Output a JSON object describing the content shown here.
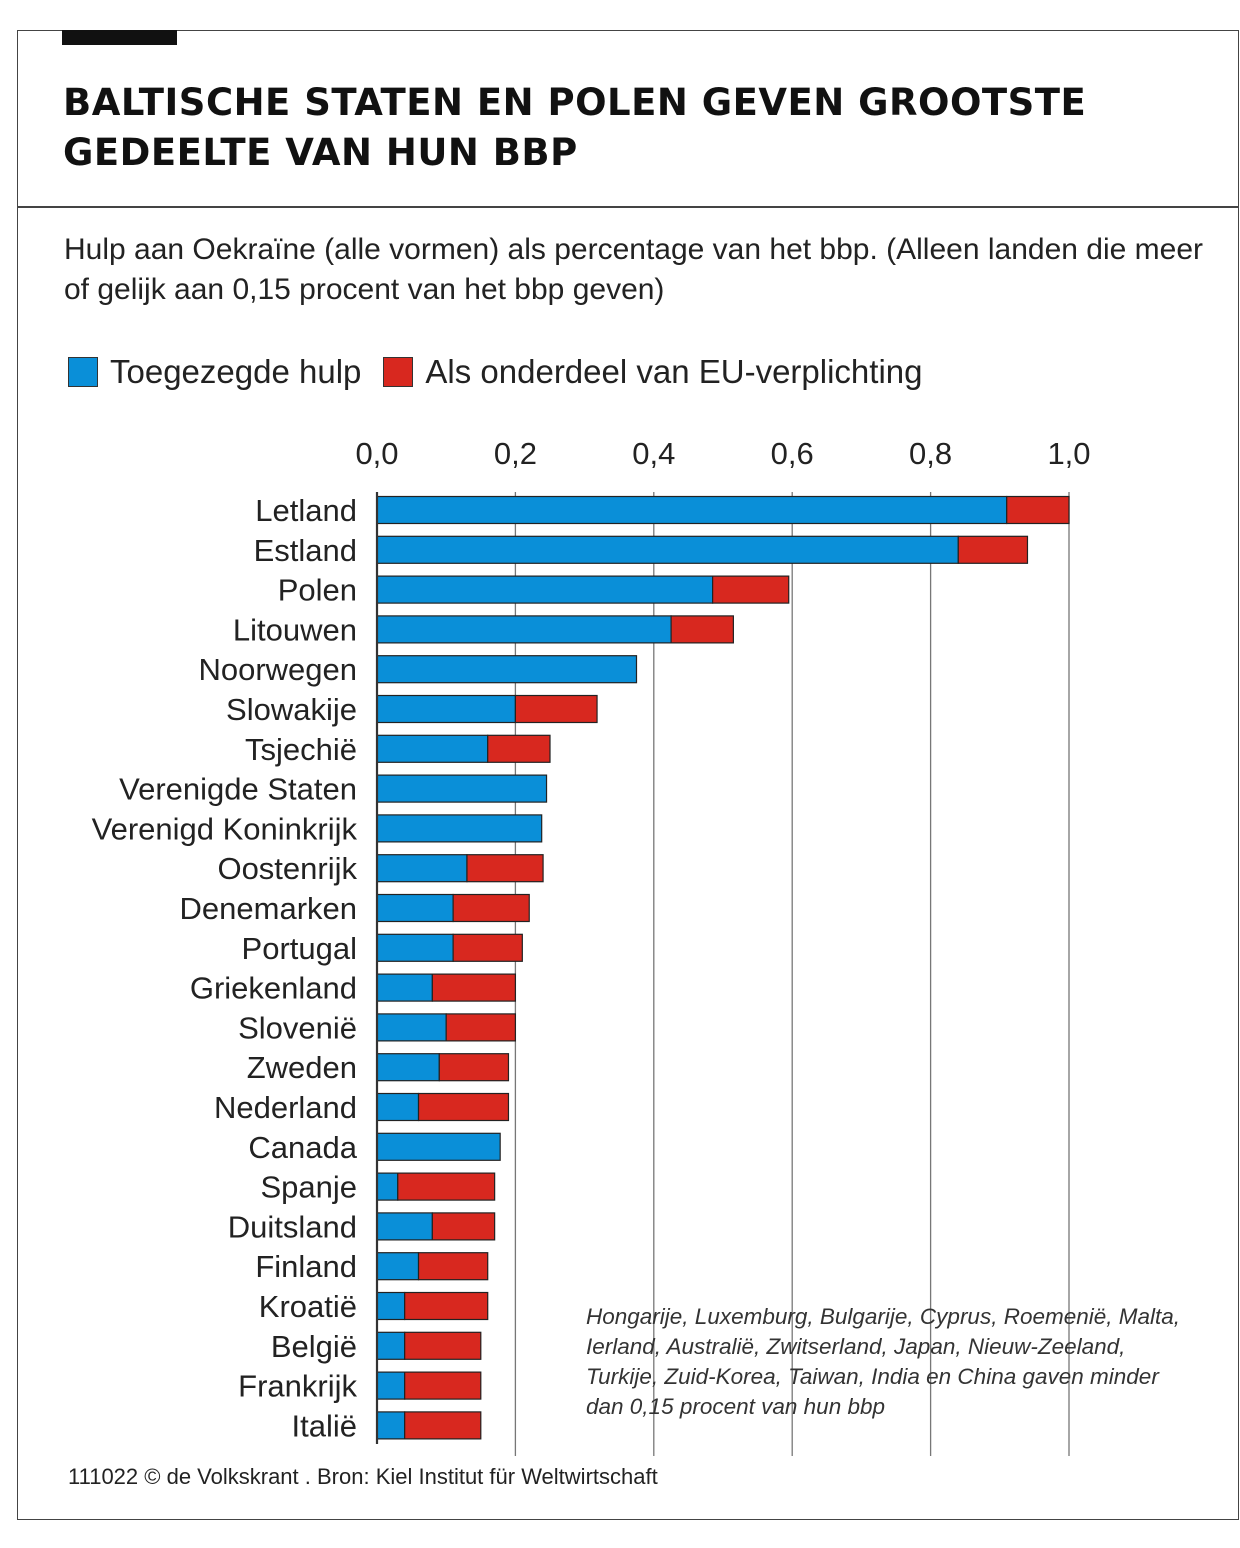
{
  "title": "BALTISCHE STATEN EN POLEN GEVEN GROOTSTE GEDEELTE VAN HUN BBP",
  "subtitle": "Hulp aan Oekraïne (alle vormen) als percentage van het bbp. (Alleen landen die meer of gelijk aan 0,15 procent van het bbp geven)",
  "legend": {
    "committed": "Toegezegde hulp",
    "eu": "Als onderdeel van EU-verplichting"
  },
  "colors": {
    "committed": "#0a8fd8",
    "eu": "#d8281f",
    "grid": "#777777",
    "axis": "#333333"
  },
  "note": "Hongarije, Luxemburg, Bulgarije, Cyprus, Roemenië, Malta, Ierland, Australië, Zwitserland, Japan, Nieuw-Zeeland, Turkije, Zuid-Korea, Taiwan, India en China gaven minder dan 0,15 procent van hun bbp",
  "footer": "111022 © de Volkskrant . Bron: Kiel Institut für Weltwirtschaft",
  "chart_data": {
    "type": "bar",
    "orientation": "horizontal",
    "stacked": true,
    "title": "BALTISCHE STATEN EN POLEN GEVEN GROOTSTE GEDEELTE VAN HUN BBP",
    "xlabel": "",
    "ylabel": "",
    "xlim": [
      0,
      1.0
    ],
    "ticks": [
      0,
      0.2,
      0.4,
      0.6,
      0.8,
      1.0
    ],
    "tick_labels": [
      "0,0",
      "0,2",
      "0,4",
      "0,6",
      "0,8",
      "1,0"
    ],
    "grid": true,
    "legend_position": "top-left",
    "categories": [
      "Letland",
      "Estland",
      "Polen",
      "Litouwen",
      "Noorwegen",
      "Slowakije",
      "Tsjechië",
      "Verenigde Staten",
      "Verenigd Koninkrijk",
      "Oostenrijk",
      "Denemarken",
      "Portugal",
      "Griekenland",
      "Slovenië",
      "Zweden",
      "Nederland",
      "Canada",
      "Spanje",
      "Duitsland",
      "Finland",
      "Kroatië",
      "België",
      "Frankrijk",
      "Italië"
    ],
    "series": [
      {
        "name": "Toegezegde hulp",
        "values": [
          0.91,
          0.84,
          0.485,
          0.425,
          0.375,
          0.2,
          0.16,
          0.245,
          0.238,
          0.13,
          0.11,
          0.11,
          0.08,
          0.1,
          0.09,
          0.06,
          0.178,
          0.03,
          0.08,
          0.06,
          0.04,
          0.04,
          0.04,
          0.04
        ]
      },
      {
        "name": "Als onderdeel van EU-verplichting",
        "values": [
          0.09,
          0.1,
          0.11,
          0.09,
          0,
          0.118,
          0.09,
          0,
          0,
          0.11,
          0.11,
          0.1,
          0.12,
          0.1,
          0.1,
          0.13,
          0,
          0.14,
          0.09,
          0.1,
          0.12,
          0.11,
          0.11,
          0.11
        ]
      }
    ]
  }
}
